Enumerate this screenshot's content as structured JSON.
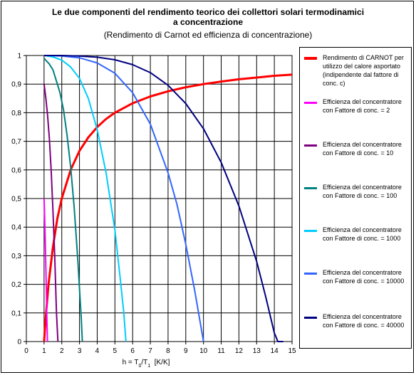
{
  "title_line1": "Le due componenti del rendimento teorico dei collettori solari termodinamici",
  "title_line2": "a concentrazione",
  "subtitle": "(Rendimento di Carnot ed efficienza di concentrazione)",
  "chart_data": {
    "type": "line",
    "title": "Le due componenti del rendimento teorico dei collettori solari termodinamici a concentrazione",
    "subtitle": "(Rendimento di Carnot ed efficienza di concentrazione)",
    "xlabel": "h = T0/T1  [K/K]",
    "xlabel_parts": {
      "main": "h = T",
      "sub1": "0",
      "mid": "/T",
      "sub2": "1",
      "unit": "  [K/K]"
    },
    "ylabel": "",
    "xlim": [
      0,
      15
    ],
    "ylim": [
      0,
      1
    ],
    "x_ticks": [
      "0",
      "1",
      "2",
      "3",
      "4",
      "5",
      "6",
      "7",
      "8",
      "9",
      "10",
      "11",
      "12",
      "13",
      "14",
      "15"
    ],
    "y_ticks": [
      "0",
      "0,1",
      "0,2",
      "0,3",
      "0,4",
      "0,5",
      "0,6",
      "0,7",
      "0,8",
      "0,9",
      "1"
    ],
    "grid": true,
    "legend_position": "right",
    "series": [
      {
        "name": "Rendimento di CARNOT per utilizzo del calore asportato (indipendente dal fattore di conc. c)",
        "color": "#ff0000",
        "x": [
          1.0,
          1.1,
          1.25,
          1.5,
          1.75,
          2,
          2.5,
          3,
          3.5,
          4,
          4.5,
          5,
          6,
          7,
          8,
          9,
          10,
          11,
          12,
          13,
          14,
          15
        ],
        "y": [
          0.0,
          0.09,
          0.2,
          0.33,
          0.43,
          0.5,
          0.6,
          0.667,
          0.714,
          0.75,
          0.778,
          0.8,
          0.833,
          0.857,
          0.875,
          0.889,
          0.9,
          0.909,
          0.917,
          0.923,
          0.929,
          0.933
        ]
      },
      {
        "name": "Efficienza del concentratore con Fattore di conc. = 2",
        "color": "#ff00ff",
        "x": [
          1.0,
          1.03,
          1.06,
          1.09,
          1.12,
          1.15,
          1.19
        ],
        "y": [
          0.5,
          0.44,
          0.37,
          0.29,
          0.2,
          0.1,
          0.0
        ]
      },
      {
        "name": "Efficienza del concentratore con Fattore di conc. = 10",
        "color": "#800080",
        "x": [
          1.0,
          1.1,
          1.2,
          1.3,
          1.4,
          1.5,
          1.6,
          1.7,
          1.78
        ],
        "y": [
          0.9,
          0.85,
          0.79,
          0.71,
          0.6,
          0.46,
          0.3,
          0.1,
          0.0
        ]
      },
      {
        "name": "Efficienza del concentratore con Fattore di conc. = 100",
        "color": "#008080",
        "x": [
          1.0,
          1.3,
          1.5,
          1.7,
          1.9,
          2.1,
          2.3,
          2.5,
          2.7,
          2.9,
          3.1,
          3.16
        ],
        "y": [
          0.99,
          0.97,
          0.95,
          0.91,
          0.87,
          0.81,
          0.72,
          0.61,
          0.47,
          0.29,
          0.08,
          0.0
        ]
      },
      {
        "name": "Efficienza del concentratore con Fattore di conc. = 1000",
        "color": "#00ccff",
        "x": [
          1.0,
          1.5,
          2,
          2.5,
          3,
          3.5,
          4,
          4.5,
          5,
          5.3,
          5.5,
          5.62
        ],
        "y": [
          1.0,
          0.995,
          0.984,
          0.96,
          0.92,
          0.85,
          0.74,
          0.59,
          0.39,
          0.22,
          0.1,
          0.0
        ]
      },
      {
        "name": "Efficienza del concentratore con Fattore di conc. = 10000",
        "color": "#3366ff",
        "x": [
          1.0,
          2,
          3,
          4,
          5,
          6,
          7,
          8,
          8.5,
          9,
          9.5,
          10.0
        ],
        "y": [
          1.0,
          0.998,
          0.992,
          0.974,
          0.938,
          0.87,
          0.76,
          0.59,
          0.48,
          0.34,
          0.18,
          0.0
        ]
      },
      {
        "name": "Efficienza del concentratore con Fattore di conc. = 40000",
        "color": "#000080",
        "x": [
          1.0,
          2,
          3,
          4,
          5,
          6,
          7,
          8,
          9,
          10,
          11,
          12,
          13,
          13.5,
          14.0,
          14.2,
          14.5
        ],
        "y": [
          1.0,
          1.0,
          0.998,
          0.994,
          0.985,
          0.968,
          0.94,
          0.896,
          0.832,
          0.744,
          0.626,
          0.474,
          0.28,
          0.16,
          0.03,
          0.0,
          0.0
        ]
      }
    ]
  }
}
